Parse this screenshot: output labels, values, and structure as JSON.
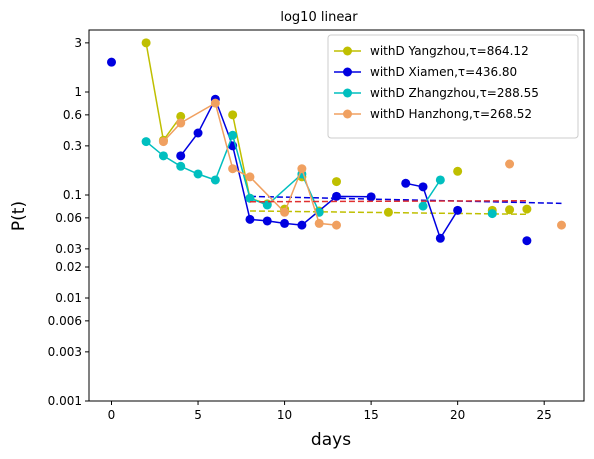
{
  "chart_data": {
    "type": "scatter",
    "title": "log10 linear",
    "xlabel": "days",
    "ylabel": "P(t)",
    "xscale": "linear",
    "yscale": "log",
    "xlim": [
      -1.3,
      27.3
    ],
    "ylim": [
      0.001,
      4.0
    ],
    "xticks": [
      0,
      5,
      10,
      15,
      20,
      25
    ],
    "xtick_labels": [
      "0",
      "5",
      "10",
      "15",
      "20",
      "25"
    ],
    "yticks": [
      0.001,
      0.003,
      0.006,
      0.01,
      0.02,
      0.03,
      0.06,
      0.1,
      0.3,
      0.6,
      1,
      3
    ],
    "ytick_labels": [
      "0.001",
      "0.003",
      "0.006",
      "0.01",
      "0.02",
      "0.03",
      "0.06",
      "0.1",
      "0.3",
      "0.6",
      "1",
      "3"
    ],
    "grid": false,
    "legend_position": "top-right",
    "series": [
      {
        "name": "withD Yangzhou,τ=864.12",
        "color": "#bfbf00",
        "x": [
          2,
          3,
          4,
          7,
          8,
          9,
          10,
          11,
          12,
          13,
          16,
          20,
          22,
          23,
          24
        ],
        "y": [
          3.0,
          0.34,
          0.58,
          0.6,
          0.093,
          0.082,
          0.073,
          0.15,
          0.07,
          0.135,
          0.068,
          0.17,
          0.071,
          0.072,
          0.073
        ],
        "line_segments": [
          [
            0,
            2
          ],
          [
            3,
            5
          ]
        ],
        "fit": {
          "x": [
            8,
            24
          ],
          "y": [
            0.07,
            0.065
          ],
          "dash": true
        }
      },
      {
        "name": "withD Xiamen,τ=436.80",
        "color": "#0000e0",
        "x": [
          0,
          4,
          5,
          6,
          7,
          8,
          9,
          10,
          11,
          13,
          15,
          17,
          18,
          19,
          20,
          24
        ],
        "y": [
          1.95,
          0.24,
          0.4,
          0.85,
          0.3,
          0.058,
          0.056,
          0.053,
          0.051,
          0.097,
          0.096,
          0.13,
          0.12,
          0.038,
          0.071,
          0.036
        ],
        "line_segments": [
          [
            1,
            10
          ],
          [
            11,
            14
          ]
        ],
        "fit": {
          "x": [
            8,
            26
          ],
          "y": [
            0.097,
            0.083
          ],
          "dash": true
        }
      },
      {
        "name": "withD Zhangzhou,τ=288.55",
        "color": "#00bfbf",
        "x": [
          2,
          3,
          4,
          5,
          6,
          7,
          8,
          9,
          11,
          12,
          18,
          19,
          22
        ],
        "y": [
          0.33,
          0.24,
          0.19,
          0.16,
          0.14,
          0.38,
          0.093,
          0.08,
          0.16,
          0.068,
          0.078,
          0.14,
          0.066
        ],
        "line_segments": [
          [
            0,
            9
          ],
          [
            10,
            11
          ]
        ],
        "fit": null
      },
      {
        "name": "withD Hanzhong,τ=268.52",
        "color": "#f0a060",
        "x": [
          3,
          4,
          6,
          7,
          8,
          10,
          11,
          12,
          13,
          23,
          26
        ],
        "y": [
          0.33,
          0.5,
          0.78,
          0.18,
          0.15,
          0.068,
          0.18,
          0.053,
          0.051,
          0.2,
          0.051
        ],
        "line_segments": [
          [
            0,
            8
          ]
        ],
        "fit": {
          "x": [
            8,
            24
          ],
          "y": [
            0.086,
            0.088
          ],
          "dash": true,
          "color": "#e03030"
        }
      }
    ]
  }
}
